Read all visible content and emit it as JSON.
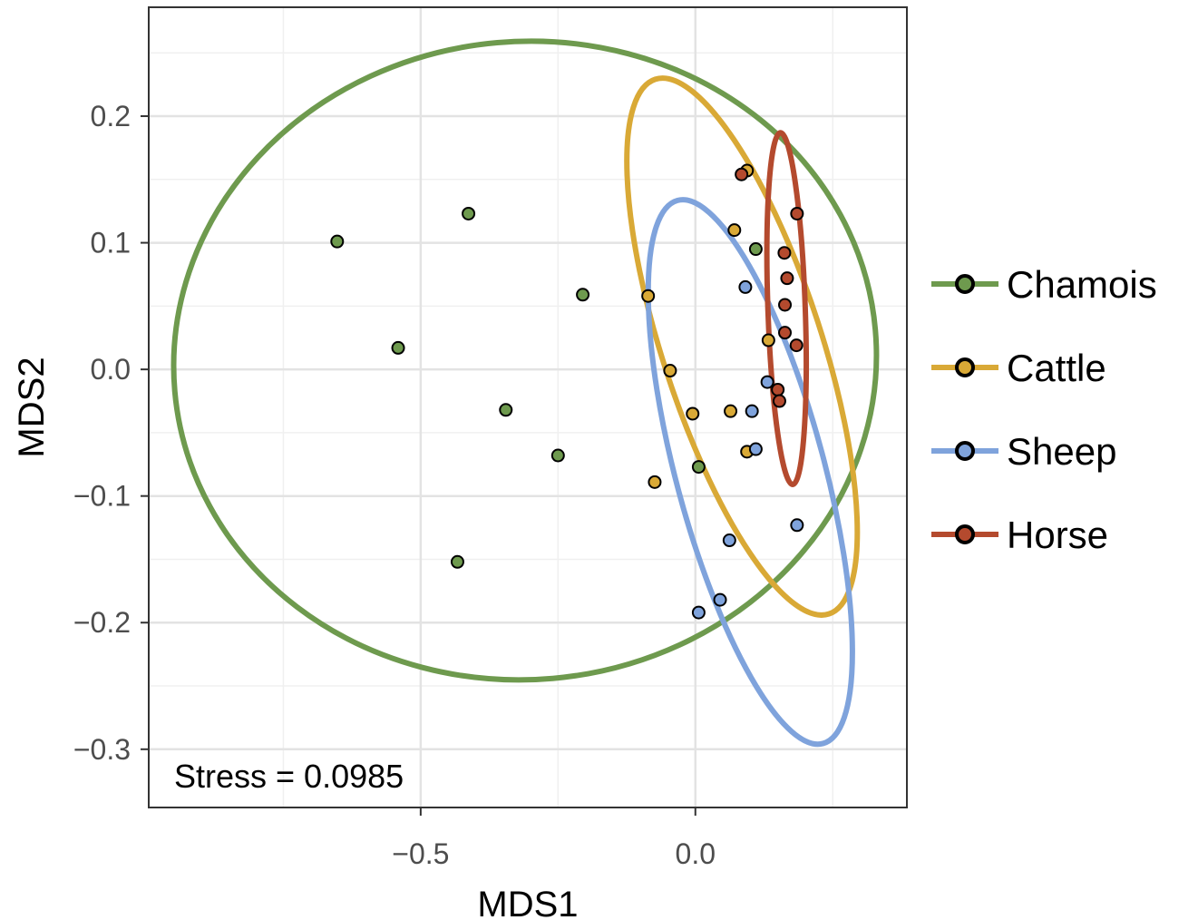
{
  "chart_data": {
    "type": "scatter",
    "title": "",
    "xlabel": "MDS1",
    "ylabel": "MDS2",
    "xlim": [
      -0.995,
      0.385
    ],
    "ylim": [
      -0.346,
      0.286
    ],
    "x_ticks": [
      -0.5,
      0.0
    ],
    "x_tick_labels": [
      "−0.5",
      "0.0"
    ],
    "y_ticks": [
      0.2,
      0.1,
      0.0,
      -0.1,
      -0.2,
      -0.3
    ],
    "y_tick_labels": [
      "0.2",
      "0.1",
      "0.0",
      "−0.1",
      "−0.2",
      "−0.3"
    ],
    "grid": true,
    "legend_position": "right",
    "annotation": "Stress = 0.0985",
    "series": [
      {
        "name": "Chamois",
        "color": "#6E9A4E",
        "points": [
          {
            "x": -0.652,
            "y": 0.101
          },
          {
            "x": -0.413,
            "y": 0.123
          },
          {
            "x": -0.541,
            "y": 0.017
          },
          {
            "x": -0.345,
            "y": -0.032
          },
          {
            "x": -0.205,
            "y": 0.059
          },
          {
            "x": -0.25,
            "y": -0.068
          },
          {
            "x": -0.433,
            "y": -0.152
          },
          {
            "x": 0.006,
            "y": -0.077
          },
          {
            "x": 0.11,
            "y": 0.095
          }
        ],
        "ellipse": {
          "cx": -0.31,
          "cy": 0.007,
          "rx": 0.64,
          "ry": 0.252,
          "angle": -5
        }
      },
      {
        "name": "Cattle",
        "color": "#D9A936",
        "points": [
          {
            "x": 0.094,
            "y": 0.157
          },
          {
            "x": 0.071,
            "y": 0.11
          },
          {
            "x": -0.086,
            "y": 0.058
          },
          {
            "x": -0.046,
            "y": -0.001
          },
          {
            "x": -0.005,
            "y": -0.035
          },
          {
            "x": 0.064,
            "y": -0.033
          },
          {
            "x": 0.094,
            "y": -0.065
          },
          {
            "x": -0.074,
            "y": -0.089
          },
          {
            "x": 0.133,
            "y": 0.023
          }
        ],
        "ellipse": {
          "cx": 0.085,
          "cy": 0.018,
          "rx": 0.145,
          "ry": 0.222,
          "angle": -18
        }
      },
      {
        "name": "Sheep",
        "color": "#7FA3DC",
        "points": [
          {
            "x": 0.091,
            "y": 0.065
          },
          {
            "x": 0.131,
            "y": -0.01
          },
          {
            "x": 0.103,
            "y": -0.033
          },
          {
            "x": 0.11,
            "y": -0.063
          },
          {
            "x": 0.185,
            "y": -0.123
          },
          {
            "x": 0.062,
            "y": -0.135
          },
          {
            "x": 0.045,
            "y": -0.182
          },
          {
            "x": 0.006,
            "y": -0.192
          }
        ],
        "ellipse": {
          "cx": 0.1,
          "cy": -0.081,
          "rx": 0.135,
          "ry": 0.222,
          "angle": -15
        }
      },
      {
        "name": "Horse",
        "color": "#B44A2E",
        "points": [
          {
            "x": 0.084,
            "y": 0.154
          },
          {
            "x": 0.185,
            "y": 0.123
          },
          {
            "x": 0.162,
            "y": 0.092
          },
          {
            "x": 0.167,
            "y": 0.072
          },
          {
            "x": 0.163,
            "y": 0.051
          },
          {
            "x": 0.163,
            "y": 0.029
          },
          {
            "x": 0.184,
            "y": 0.019
          },
          {
            "x": 0.15,
            "y": -0.016
          },
          {
            "x": 0.153,
            "y": -0.025
          }
        ],
        "ellipse": {
          "cx": 0.166,
          "cy": 0.048,
          "rx": 0.034,
          "ry": 0.139,
          "angle": -2
        }
      }
    ]
  }
}
